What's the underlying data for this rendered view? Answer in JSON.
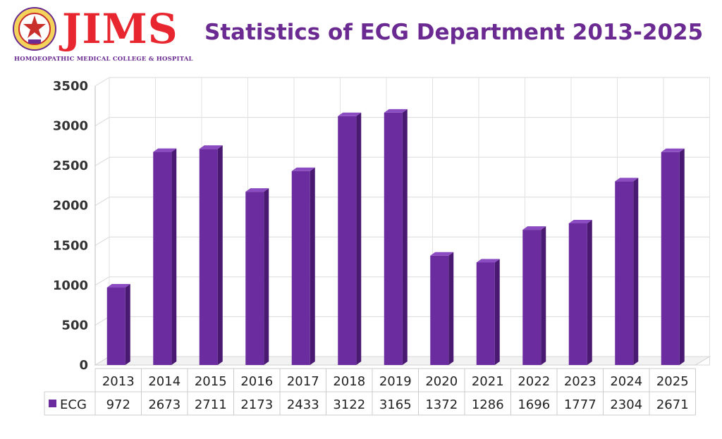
{
  "header": {
    "brand": "JIMS",
    "tagline": "HOMOEOPATHIC MEDICAL COLLEGE & HOSPITAL",
    "title": "Statistics of ECG Department 2013-2025"
  },
  "colors": {
    "bar": "#6b2c9f",
    "bar_side": "#4a1a72",
    "bar_top": "#8a4cc0",
    "title": "#6a2a91",
    "brand": "#e8262f"
  },
  "chart_data": {
    "type": "bar",
    "title": "Statistics of ECG Department 2013-2025",
    "categories": [
      "2013",
      "2014",
      "2015",
      "2016",
      "2017",
      "2018",
      "2019",
      "2020",
      "2021",
      "2022",
      "2023",
      "2024",
      "2025"
    ],
    "series": [
      {
        "name": "ECG",
        "values": [
          972,
          2673,
          2711,
          2173,
          2433,
          3122,
          3165,
          1372,
          1286,
          1696,
          1777,
          2304,
          2671
        ]
      }
    ],
    "ylim": [
      0,
      3500
    ],
    "yticks": [
      0,
      500,
      1000,
      1500,
      2000,
      2500,
      3000,
      3500
    ],
    "grid": true,
    "three_d": true,
    "data_table": true
  }
}
